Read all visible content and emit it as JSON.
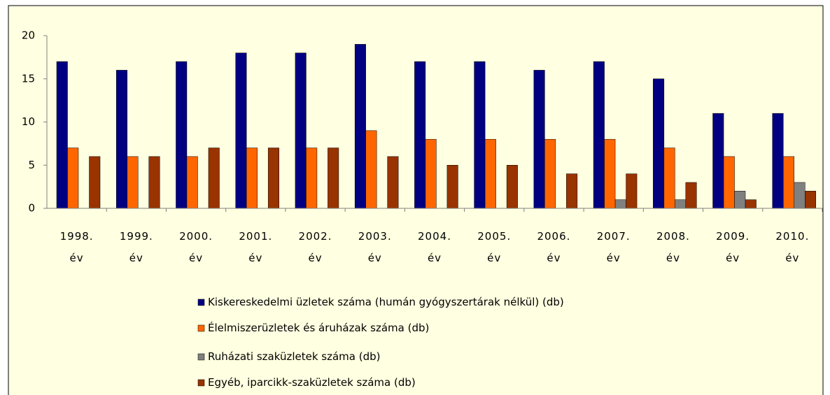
{
  "chart_data": {
    "type": "bar",
    "categories": [
      "1998. év",
      "1999. év",
      "2000. év",
      "2001. év",
      "2002. év",
      "2003. év",
      "2004. év",
      "2005. év",
      "2006. év",
      "2007. év",
      "2008. év",
      "2009. év",
      "2010. év"
    ],
    "series": [
      {
        "name": "Kiskereskedelmi üzletek  száma (humán gyógyszertárak nélkül) (db)",
        "color": "#000080",
        "values": [
          17,
          16,
          17,
          18,
          18,
          19,
          17,
          17,
          16,
          17,
          15,
          11,
          11
        ]
      },
      {
        "name": "Élelmiszerüzletek és áruházak száma (db)",
        "color": "#ff6600",
        "values": [
          7,
          6,
          6,
          7,
          7,
          9,
          8,
          8,
          8,
          8,
          7,
          6,
          6
        ]
      },
      {
        "name": "Ruházati szaküzletek száma (db)",
        "color": "#808080",
        "values": [
          0,
          0,
          0,
          0,
          0,
          0,
          0,
          0,
          0,
          1,
          1,
          2,
          3
        ]
      },
      {
        "name": "Egyéb, iparcikk-szaküzletek száma (db)",
        "color": "#993300",
        "values": [
          6,
          6,
          7,
          7,
          7,
          6,
          5,
          5,
          4,
          4,
          3,
          1,
          2
        ]
      }
    ],
    "ylim": [
      0,
      20
    ],
    "yticks": [
      0,
      5,
      10,
      15,
      20
    ],
    "legend": "bottom"
  }
}
